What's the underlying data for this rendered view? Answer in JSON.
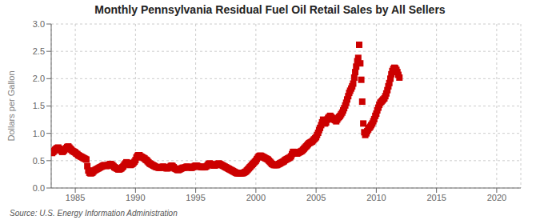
{
  "chart_data": {
    "type": "scatter",
    "title": "Monthly Pennsylvania Residual Fuel Oil Retail Sales by All Sellers",
    "ylabel": "Dollars per Gallon",
    "annotation": "Source: U.S. Energy Information Administration",
    "color": "#cc0000",
    "marker": "square",
    "grid": true,
    "xlim": [
      1983,
      2022
    ],
    "ylim": [
      0,
      3
    ],
    "xticks": [
      1985,
      1990,
      1995,
      2000,
      2005,
      2010,
      2015,
      2020
    ],
    "yticks": [
      {
        "value": 0,
        "label": "0.0"
      },
      0.5,
      {
        "value": 1,
        "label": "1.0"
      },
      1.5,
      {
        "value": 2,
        "label": "2.0"
      },
      2.5,
      {
        "value": 3,
        "label": "3.0"
      }
    ],
    "x": [
      1983.0,
      1983.08,
      1983.17,
      1983.25,
      1983.33,
      1983.42,
      1983.5,
      1983.58,
      1983.67,
      1983.75,
      1983.83,
      1983.92,
      1984.0,
      1984.08,
      1984.17,
      1984.25,
      1984.33,
      1984.42,
      1984.5,
      1984.58,
      1984.67,
      1984.75,
      1984.83,
      1984.92,
      1985.0,
      1985.08,
      1985.17,
      1985.25,
      1985.33,
      1985.42,
      1985.5,
      1985.58,
      1985.67,
      1985.75,
      1985.83,
      1985.92,
      1986.0,
      1986.08,
      1986.17,
      1986.25,
      1986.33,
      1986.42,
      1986.5,
      1986.58,
      1986.67,
      1986.75,
      1986.83,
      1986.92,
      1987.0,
      1987.08,
      1987.17,
      1987.25,
      1987.33,
      1987.42,
      1987.5,
      1987.58,
      1987.67,
      1987.75,
      1987.83,
      1987.92,
      1988.0,
      1988.08,
      1988.17,
      1988.25,
      1988.33,
      1988.42,
      1988.5,
      1988.58,
      1988.67,
      1988.75,
      1988.83,
      1988.92,
      1989.0,
      1989.08,
      1989.17,
      1989.25,
      1989.33,
      1989.42,
      1989.5,
      1989.58,
      1989.67,
      1989.75,
      1989.83,
      1989.92,
      1990.0,
      1990.08,
      1990.17,
      1990.25,
      1990.33,
      1990.42,
      1990.5,
      1990.58,
      1990.67,
      1990.75,
      1990.83,
      1990.92,
      1991.0,
      1991.08,
      1991.17,
      1991.25,
      1991.33,
      1991.42,
      1991.5,
      1991.58,
      1991.67,
      1991.75,
      1991.83,
      1991.92,
      1992.0,
      1992.08,
      1992.17,
      1992.25,
      1992.33,
      1992.42,
      1992.5,
      1992.58,
      1992.67,
      1992.75,
      1992.83,
      1992.92,
      1993.0,
      1993.08,
      1993.17,
      1993.25,
      1993.33,
      1993.42,
      1993.5,
      1993.58,
      1993.67,
      1993.75,
      1993.83,
      1993.92,
      1994.0,
      1994.08,
      1994.17,
      1994.25,
      1994.33,
      1994.42,
      1994.5,
      1994.58,
      1994.67,
      1994.75,
      1994.83,
      1994.92,
      1995.0,
      1995.08,
      1995.17,
      1995.25,
      1995.33,
      1995.42,
      1995.5,
      1995.58,
      1995.67,
      1995.75,
      1995.83,
      1995.92,
      1996.0,
      1996.08,
      1996.17,
      1996.25,
      1996.33,
      1996.42,
      1996.5,
      1996.58,
      1996.67,
      1996.75,
      1996.83,
      1996.92,
      1997.0,
      1997.08,
      1997.17,
      1997.25,
      1997.33,
      1997.42,
      1997.5,
      1997.58,
      1997.67,
      1997.75,
      1997.83,
      1997.92,
      1998.0,
      1998.08,
      1998.17,
      1998.25,
      1998.33,
      1998.42,
      1998.5,
      1998.58,
      1998.67,
      1998.75,
      1998.83,
      1998.92,
      1999.0,
      1999.08,
      1999.17,
      1999.25,
      1999.33,
      1999.42,
      1999.5,
      1999.58,
      1999.67,
      1999.75,
      1999.83,
      1999.92,
      2000.0,
      2000.08,
      2000.17,
      2000.25,
      2000.33,
      2000.42,
      2000.5,
      2000.58,
      2000.67,
      2000.75,
      2000.83,
      2000.92,
      2001.0,
      2001.08,
      2001.17,
      2001.25,
      2001.33,
      2001.42,
      2001.5,
      2001.58,
      2001.67,
      2001.75,
      2001.83,
      2001.92,
      2002.0,
      2002.08,
      2002.17,
      2002.25,
      2002.33,
      2002.42,
      2002.5,
      2002.58,
      2002.67,
      2002.75,
      2002.83,
      2002.92,
      2003.0,
      2003.08,
      2003.17,
      2003.25,
      2003.33,
      2003.42,
      2003.5,
      2003.58,
      2003.67,
      2003.75,
      2003.83,
      2003.92,
      2004.0,
      2004.08,
      2004.17,
      2004.25,
      2004.33,
      2004.42,
      2004.5,
      2004.58,
      2004.67,
      2004.75,
      2004.83,
      2004.92,
      2005.0,
      2005.08,
      2005.17,
      2005.25,
      2005.33,
      2005.42,
      2005.5,
      2005.58,
      2005.67,
      2005.75,
      2005.83,
      2005.92,
      2006.0,
      2006.08,
      2006.17,
      2006.25,
      2006.33,
      2006.42,
      2006.5,
      2006.58,
      2006.67,
      2006.75,
      2006.83,
      2006.92,
      2007.0,
      2007.08,
      2007.17,
      2007.25,
      2007.33,
      2007.42,
      2007.5,
      2007.58,
      2007.67,
      2007.75,
      2007.83,
      2007.92,
      2008.0,
      2008.08,
      2008.17,
      2008.25,
      2008.33,
      2008.42,
      2008.5,
      2008.58,
      2008.67,
      2008.75,
      2008.83,
      2008.92,
      2009.0,
      2009.08,
      2009.17,
      2009.25,
      2009.33,
      2009.42,
      2009.5,
      2009.58,
      2009.67,
      2009.75,
      2009.83,
      2009.92,
      2010.0,
      2010.08,
      2010.17,
      2010.25,
      2010.33,
      2010.42,
      2010.5,
      2010.58,
      2010.67,
      2010.75,
      2010.83,
      2010.92,
      2011.0,
      2011.08,
      2011.17,
      2011.25,
      2011.33,
      2011.42,
      2011.5,
      2011.58,
      2011.67,
      2011.75,
      2011.83,
      2011.92
    ],
    "values": [
      0.65,
      0.64,
      0.66,
      0.68,
      0.7,
      0.72,
      0.73,
      0.74,
      0.72,
      0.7,
      0.68,
      0.66,
      0.67,
      0.69,
      0.71,
      0.73,
      0.75,
      0.76,
      0.74,
      0.72,
      0.7,
      0.68,
      0.67,
      0.66,
      0.65,
      0.63,
      0.62,
      0.6,
      0.59,
      0.58,
      0.57,
      0.56,
      0.55,
      0.54,
      0.53,
      0.52,
      0.4,
      0.32,
      0.28,
      0.27,
      0.27,
      0.28,
      0.3,
      0.32,
      0.33,
      0.34,
      0.35,
      0.36,
      0.37,
      0.38,
      0.39,
      0.4,
      0.41,
      0.42,
      0.41,
      0.4,
      0.41,
      0.42,
      0.43,
      0.44,
      0.43,
      0.42,
      0.4,
      0.38,
      0.37,
      0.36,
      0.35,
      0.34,
      0.34,
      0.35,
      0.36,
      0.38,
      0.4,
      0.43,
      0.45,
      0.47,
      0.46,
      0.45,
      0.43,
      0.42,
      0.43,
      0.44,
      0.46,
      0.48,
      0.51,
      0.56,
      0.59,
      0.6,
      0.6,
      0.58,
      0.57,
      0.56,
      0.55,
      0.54,
      0.52,
      0.51,
      0.49,
      0.47,
      0.45,
      0.44,
      0.43,
      0.42,
      0.41,
      0.4,
      0.39,
      0.38,
      0.38,
      0.37,
      0.37,
      0.37,
      0.38,
      0.39,
      0.39,
      0.38,
      0.37,
      0.36,
      0.36,
      0.37,
      0.38,
      0.4,
      0.41,
      0.4,
      0.38,
      0.36,
      0.35,
      0.34,
      0.33,
      0.33,
      0.34,
      0.35,
      0.36,
      0.37,
      0.37,
      0.37,
      0.38,
      0.39,
      0.39,
      0.38,
      0.38,
      0.37,
      0.37,
      0.38,
      0.39,
      0.4,
      0.41,
      0.41,
      0.4,
      0.39,
      0.39,
      0.39,
      0.38,
      0.38,
      0.38,
      0.38,
      0.39,
      0.4,
      0.42,
      0.44,
      0.45,
      0.44,
      0.43,
      0.42,
      0.41,
      0.41,
      0.42,
      0.43,
      0.44,
      0.45,
      0.44,
      0.43,
      0.42,
      0.41,
      0.4,
      0.39,
      0.38,
      0.37,
      0.36,
      0.35,
      0.34,
      0.33,
      0.32,
      0.31,
      0.3,
      0.29,
      0.28,
      0.27,
      0.27,
      0.27,
      0.27,
      0.27,
      0.27,
      0.27,
      0.28,
      0.29,
      0.3,
      0.32,
      0.34,
      0.36,
      0.38,
      0.4,
      0.42,
      0.44,
      0.46,
      0.48,
      0.5,
      0.53,
      0.56,
      0.58,
      0.59,
      0.59,
      0.58,
      0.57,
      0.56,
      0.55,
      0.54,
      0.53,
      0.52,
      0.5,
      0.48,
      0.46,
      0.44,
      0.43,
      0.42,
      0.42,
      0.42,
      0.42,
      0.43,
      0.44,
      0.45,
      0.46,
      0.47,
      0.48,
      0.49,
      0.51,
      0.52,
      0.53,
      0.54,
      0.55,
      0.56,
      0.58,
      0.62,
      0.66,
      0.66,
      0.65,
      0.64,
      0.63,
      0.64,
      0.65,
      0.66,
      0.67,
      0.68,
      0.7,
      0.72,
      0.74,
      0.76,
      0.78,
      0.8,
      0.82,
      0.83,
      0.84,
      0.85,
      0.87,
      0.89,
      0.91,
      0.93,
      0.97,
      1.01,
      1.06,
      1.1,
      1.15,
      1.2,
      1.25,
      1.22,
      1.18,
      1.2,
      1.25,
      1.28,
      1.3,
      1.32,
      1.3,
      1.28,
      1.26,
      1.25,
      1.24,
      1.22,
      1.25,
      1.28,
      1.3,
      1.32,
      1.35,
      1.38,
      1.42,
      1.46,
      1.51,
      1.56,
      1.62,
      1.68,
      1.74,
      1.78,
      1.82,
      1.86,
      1.91,
      2.02,
      2.12,
      2.22,
      2.32,
      2.38,
      2.62,
      2.28,
      1.98,
      1.58,
      1.18,
      1.02,
      0.97,
      1.0,
      1.04,
      1.07,
      1.1,
      1.12,
      1.15,
      1.18,
      1.22,
      1.26,
      1.32,
      1.36,
      1.42,
      1.47,
      1.52,
      1.56,
      1.58,
      1.6,
      1.62,
      1.64,
      1.68,
      1.73,
      1.79,
      1.86,
      1.92,
      2.0,
      2.08,
      2.14,
      2.18,
      2.2,
      2.19,
      2.16,
      2.12,
      2.07,
      2.02
    ]
  }
}
